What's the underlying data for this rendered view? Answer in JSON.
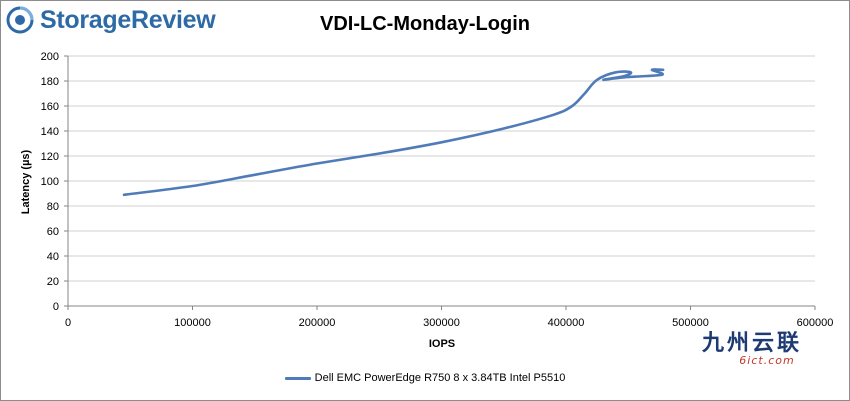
{
  "brand": {
    "name": "StorageReview",
    "icon": "storagereview-logo-icon",
    "color": "#2d6aa6"
  },
  "watermark": {
    "cn": "九州云联",
    "en": "6ict.com"
  },
  "chart_data": {
    "type": "line",
    "title": "VDI-LC-Monday-Login",
    "xlabel": "IOPS",
    "ylabel": "Latency (µs)",
    "xlim": [
      0,
      600000
    ],
    "ylim": [
      0,
      200
    ],
    "xticks": [
      0,
      100000,
      200000,
      300000,
      400000,
      500000,
      600000
    ],
    "xtick_labels": [
      "0",
      "100000",
      "200000",
      "300000",
      "400000",
      "500000",
      "600000"
    ],
    "yticks": [
      0,
      20,
      40,
      60,
      80,
      100,
      120,
      140,
      160,
      180,
      200
    ],
    "ytick_labels": [
      "0",
      "20",
      "40",
      "60",
      "80",
      "100",
      "120",
      "140",
      "160",
      "180",
      "200"
    ],
    "grid": true,
    "legend_position": "bottom",
    "series": [
      {
        "name": "Dell EMC PowerEdge R750 8 x 3.84TB Intel P5510",
        "color": "#4f7cb8",
        "points": [
          [
            45000,
            89
          ],
          [
            100000,
            96
          ],
          [
            150000,
            105
          ],
          [
            200000,
            114
          ],
          [
            250000,
            122
          ],
          [
            300000,
            131
          ],
          [
            350000,
            142
          ],
          [
            390000,
            153
          ],
          [
            405000,
            160
          ],
          [
            415000,
            170
          ],
          [
            425000,
            181
          ],
          [
            440000,
            187
          ],
          [
            452000,
            187
          ],
          [
            447000,
            184
          ],
          [
            430000,
            181
          ],
          [
            447000,
            183
          ],
          [
            477000,
            185
          ],
          [
            469000,
            189
          ],
          [
            478000,
            189
          ]
        ]
      }
    ]
  }
}
